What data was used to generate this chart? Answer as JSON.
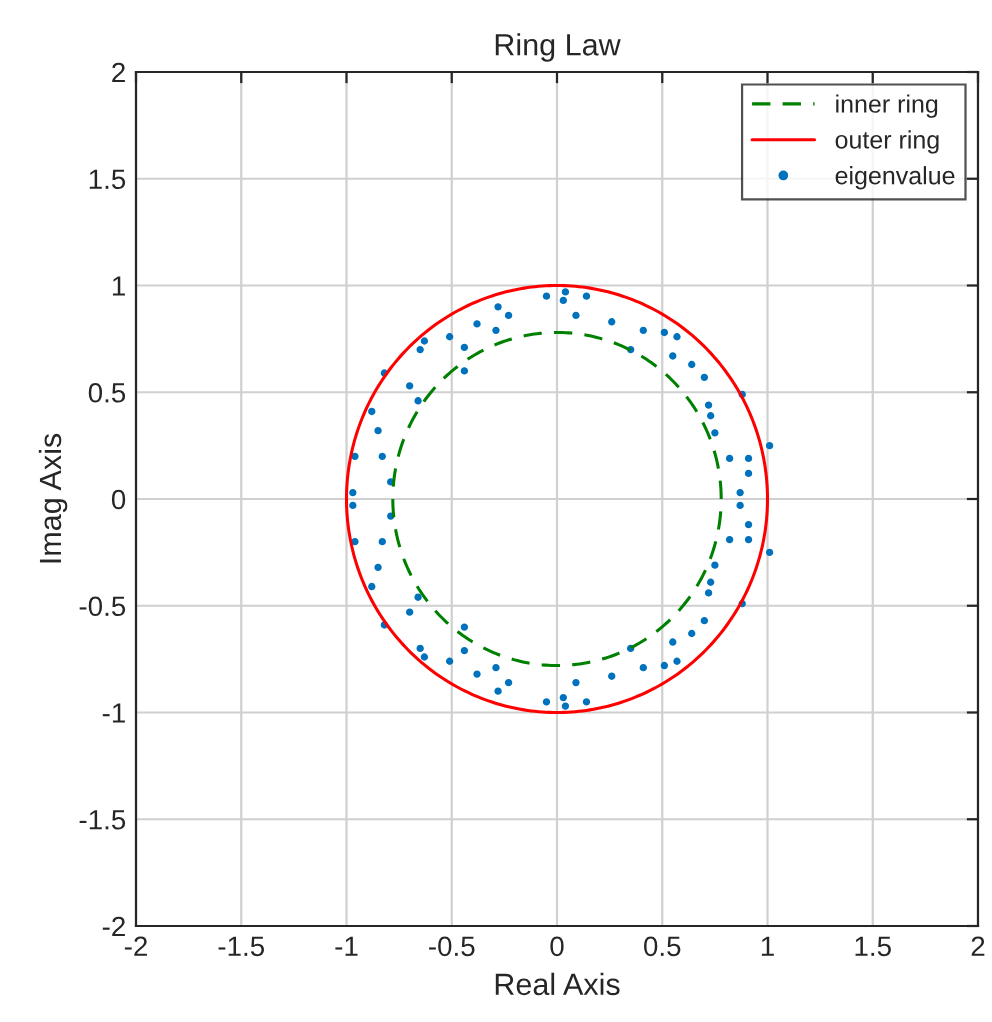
{
  "chart_data": {
    "type": "scatter",
    "title": "Ring Law",
    "xlabel": "Real Axis",
    "ylabel": "Imag Axis",
    "xlim": [
      -2,
      2
    ],
    "ylim": [
      -2,
      2
    ],
    "xticks": [
      -2,
      -1.5,
      -1,
      -0.5,
      0,
      0.5,
      1,
      1.5,
      2
    ],
    "yticks": [
      -2,
      -1.5,
      -1,
      -0.5,
      0,
      0.5,
      1,
      1.5,
      2
    ],
    "grid": true,
    "legend": "top right",
    "series": [
      {
        "name": "inner ring",
        "type": "line",
        "color": "#008000",
        "line_style": "dashed",
        "marker": "none"
      },
      {
        "name": "outer ring",
        "type": "line",
        "color": "#ff0000",
        "line_style": "solid",
        "marker": "none"
      },
      {
        "name": "eigenvalue",
        "color": "#0072bd",
        "marker": "circle",
        "x": [
          0.04,
          -0.05,
          -0.28,
          -0.23,
          -0.38,
          -0.29,
          -0.51,
          -0.63,
          -0.65,
          -0.44,
          -0.44,
          -0.82,
          -0.7,
          -0.66,
          -0.88,
          -0.85,
          -0.96,
          -0.83,
          -0.79,
          -0.97,
          0.03,
          0.14,
          0.09,
          0.26,
          0.41,
          0.51,
          0.57,
          0.35,
          0.55,
          0.64,
          0.7,
          0.88,
          0.72,
          0.73,
          0.75,
          1.01,
          0.82,
          0.91,
          0.91,
          0.87,
          0.04,
          -0.05,
          -0.28,
          -0.23,
          -0.38,
          -0.29,
          -0.51,
          -0.63,
          -0.65,
          -0.44,
          -0.44,
          -0.82,
          -0.7,
          -0.66,
          -0.88,
          -0.85,
          -0.96,
          -0.83,
          -0.79,
          -0.97,
          0.03,
          0.14,
          0.09,
          0.26,
          0.41,
          0.51,
          0.57,
          0.35,
          0.55,
          0.64,
          0.7,
          0.88,
          0.72,
          0.73,
          0.75,
          1.01,
          0.82,
          0.91,
          0.91,
          0.87
        ],
        "values": [
          0.97,
          0.95,
          0.9,
          0.86,
          0.82,
          0.79,
          0.76,
          0.74,
          0.7,
          0.71,
          0.6,
          0.59,
          0.53,
          0.46,
          0.41,
          0.32,
          0.2,
          0.2,
          0.08,
          0.03,
          0.93,
          0.95,
          0.86,
          0.83,
          0.79,
          0.78,
          0.76,
          0.7,
          0.67,
          0.63,
          0.57,
          0.49,
          0.44,
          0.39,
          0.31,
          0.25,
          0.19,
          0.19,
          0.12,
          0.03,
          -0.97,
          -0.95,
          -0.9,
          -0.86,
          -0.82,
          -0.79,
          -0.76,
          -0.74,
          -0.7,
          -0.71,
          -0.6,
          -0.59,
          -0.53,
          -0.46,
          -0.41,
          -0.32,
          -0.2,
          -0.2,
          -0.08,
          -0.03,
          -0.93,
          -0.95,
          -0.86,
          -0.83,
          -0.79,
          -0.78,
          -0.76,
          -0.7,
          -0.67,
          -0.63,
          -0.57,
          -0.49,
          -0.44,
          -0.39,
          -0.31,
          -0.25,
          -0.19,
          -0.19,
          -0.12,
          -0.03
        ]
      }
    ]
  }
}
